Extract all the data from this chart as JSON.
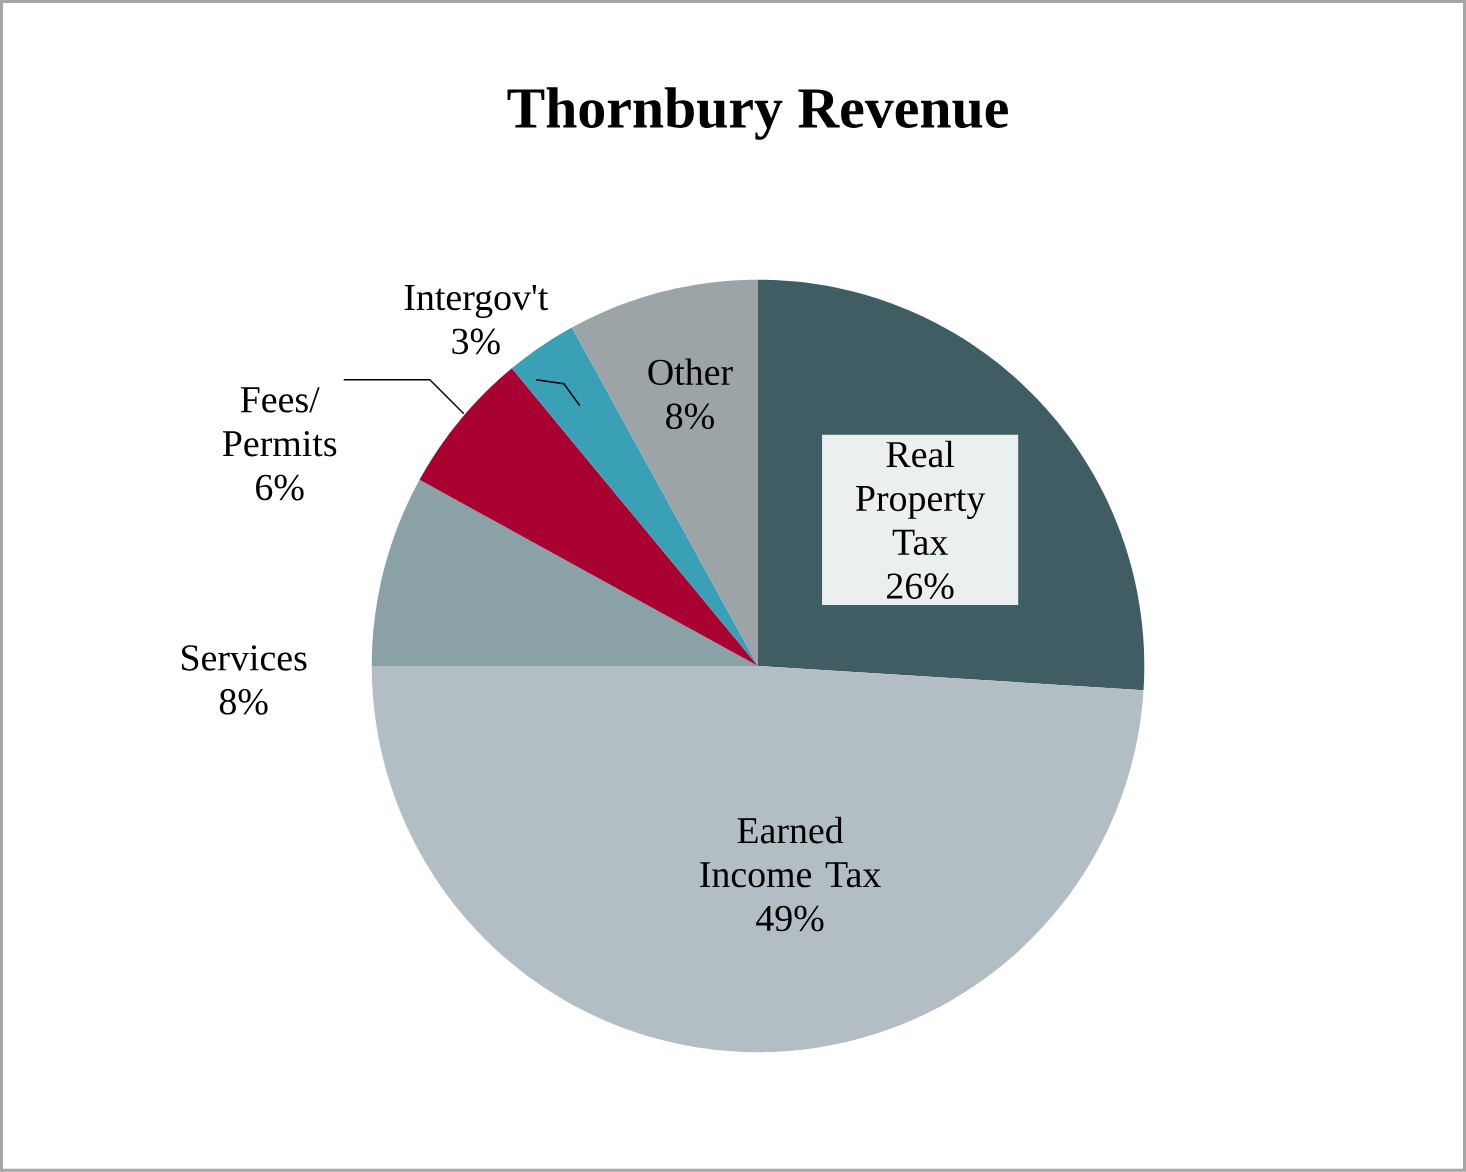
{
  "chart_data": {
    "type": "pie",
    "title": "Thornbury Revenue",
    "categories": [
      "Real Property Tax",
      "Earned Income Tax",
      "Services",
      "Fees/ Permits",
      "Intergov't",
      "Other"
    ],
    "values": [
      26,
      49,
      8,
      6,
      3,
      8
    ],
    "value_labels": [
      "26%",
      "49%",
      "8%",
      "6%",
      "3%",
      "8%"
    ],
    "colors": [
      "#3f5d63",
      "#b3bec4",
      "#8aa1a6",
      "#a80030",
      "#3aa0b5",
      "#9da4a8"
    ]
  }
}
